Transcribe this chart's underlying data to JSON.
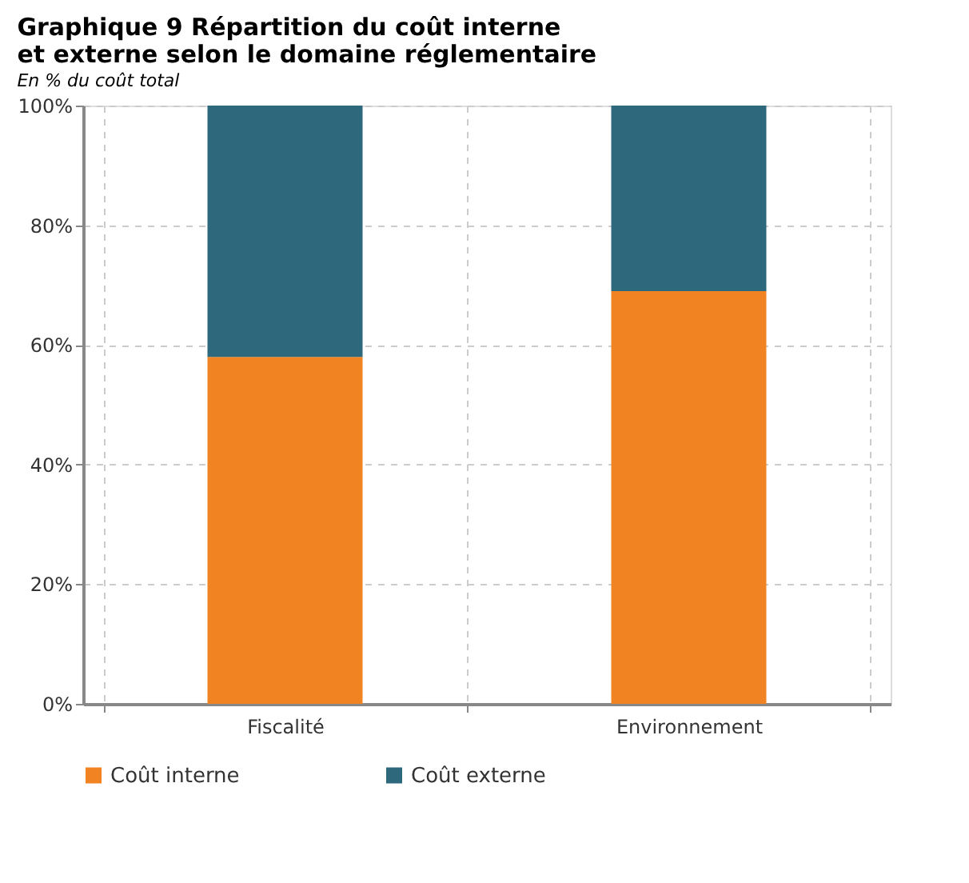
{
  "chart_data": {
    "type": "bar",
    "stacked": true,
    "title": "Graphique 9    Répartition du coût interne et externe selon le domaine réglementaire",
    "subtitle": "En % du coût total",
    "categories": [
      "Fiscalité",
      "Environnement"
    ],
    "series": [
      {
        "name": "Coût interne",
        "color": "#f28322",
        "values": [
          58,
          69
        ]
      },
      {
        "name": "Coût externe",
        "color": "#2e687d",
        "values": [
          42,
          31
        ]
      }
    ],
    "ylim": [
      0,
      100
    ],
    "yticks": [
      {
        "value": 0,
        "label": "0%"
      },
      {
        "value": 20,
        "label": "20%"
      },
      {
        "value": 40,
        "label": "40%"
      },
      {
        "value": 60,
        "label": "60%"
      },
      {
        "value": 80,
        "label": "80%"
      },
      {
        "value": 100,
        "label": "100%"
      }
    ],
    "grid": true,
    "legend": "bottom"
  }
}
